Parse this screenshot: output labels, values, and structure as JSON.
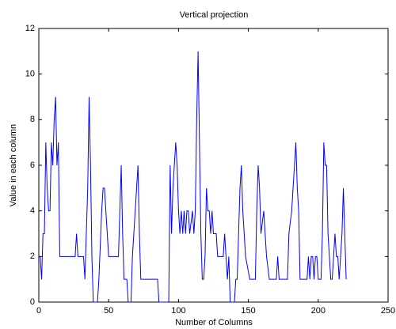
{
  "chart_data": {
    "type": "line",
    "title": "Vertical projection",
    "x_label": "Number of Columns",
    "y_label": "Value in each column",
    "color": "#0000ff",
    "x": [
      1,
      2,
      3,
      4,
      5,
      6,
      7,
      8,
      9,
      10,
      11,
      12,
      13,
      14,
      15,
      26,
      27,
      28,
      32,
      33,
      35,
      36,
      37,
      38,
      39,
      42,
      43,
      45,
      46,
      47,
      50,
      57,
      58,
      59,
      60,
      61,
      63,
      64,
      66,
      67,
      70,
      71,
      72,
      73,
      85,
      86,
      93,
      94,
      95,
      96,
      97,
      98,
      99,
      100,
      101,
      102,
      103,
      104,
      105,
      106,
      107,
      108,
      110,
      111,
      112,
      113,
      114,
      115,
      116,
      117,
      118,
      119,
      120,
      121,
      122,
      123,
      124,
      125,
      127,
      128,
      131,
      132,
      133,
      134,
      135,
      136,
      137,
      140,
      141,
      142,
      143,
      144,
      145,
      146,
      148,
      151,
      155,
      156,
      157,
      158,
      159,
      161,
      163,
      165,
      170,
      171,
      172,
      178,
      179,
      181,
      183,
      184,
      185,
      186,
      187,
      192,
      193,
      194,
      195,
      196,
      197,
      198,
      199,
      200,
      202,
      203,
      204,
      205,
      206,
      207,
      208,
      209,
      210,
      211,
      212,
      213,
      214,
      215,
      216,
      217,
      218,
      219,
      220
    ],
    "values": [
      2,
      1,
      3,
      3,
      7,
      5,
      4,
      4,
      7,
      6,
      8,
      9,
      6,
      7,
      2,
      2,
      3,
      2,
      2,
      1,
      5,
      9,
      6,
      2,
      0,
      0,
      1,
      4,
      5,
      5,
      2,
      2,
      4,
      6,
      3,
      1,
      1,
      0,
      0,
      2,
      5,
      6,
      3,
      1,
      1,
      0,
      0,
      6,
      3,
      5,
      6,
      7,
      6,
      4,
      3,
      4,
      3,
      4,
      3,
      4,
      4,
      3,
      4,
      3,
      4,
      8,
      11,
      7,
      3,
      1,
      1,
      2,
      5,
      4,
      4,
      3,
      4,
      3,
      3,
      2,
      2,
      2,
      3,
      2,
      1,
      2,
      0,
      0,
      1,
      1,
      3,
      5,
      6,
      4,
      2,
      1,
      1,
      4,
      6,
      5,
      3,
      4,
      2,
      1,
      1,
      2,
      1,
      1,
      3,
      4,
      6,
      7,
      5,
      4,
      1,
      1,
      2,
      1,
      2,
      2,
      1,
      2,
      2,
      1,
      1,
      3,
      7,
      6,
      6,
      3,
      2,
      1,
      1,
      2,
      3,
      2,
      2,
      1,
      2,
      3,
      5,
      3,
      1
    ],
    "xlim": [
      0,
      250
    ],
    "xticks": [
      0,
      50,
      100,
      150,
      200,
      250
    ],
    "ylim": [
      0,
      12
    ],
    "yticks": [
      0,
      2,
      4,
      6,
      8,
      10,
      12
    ]
  }
}
